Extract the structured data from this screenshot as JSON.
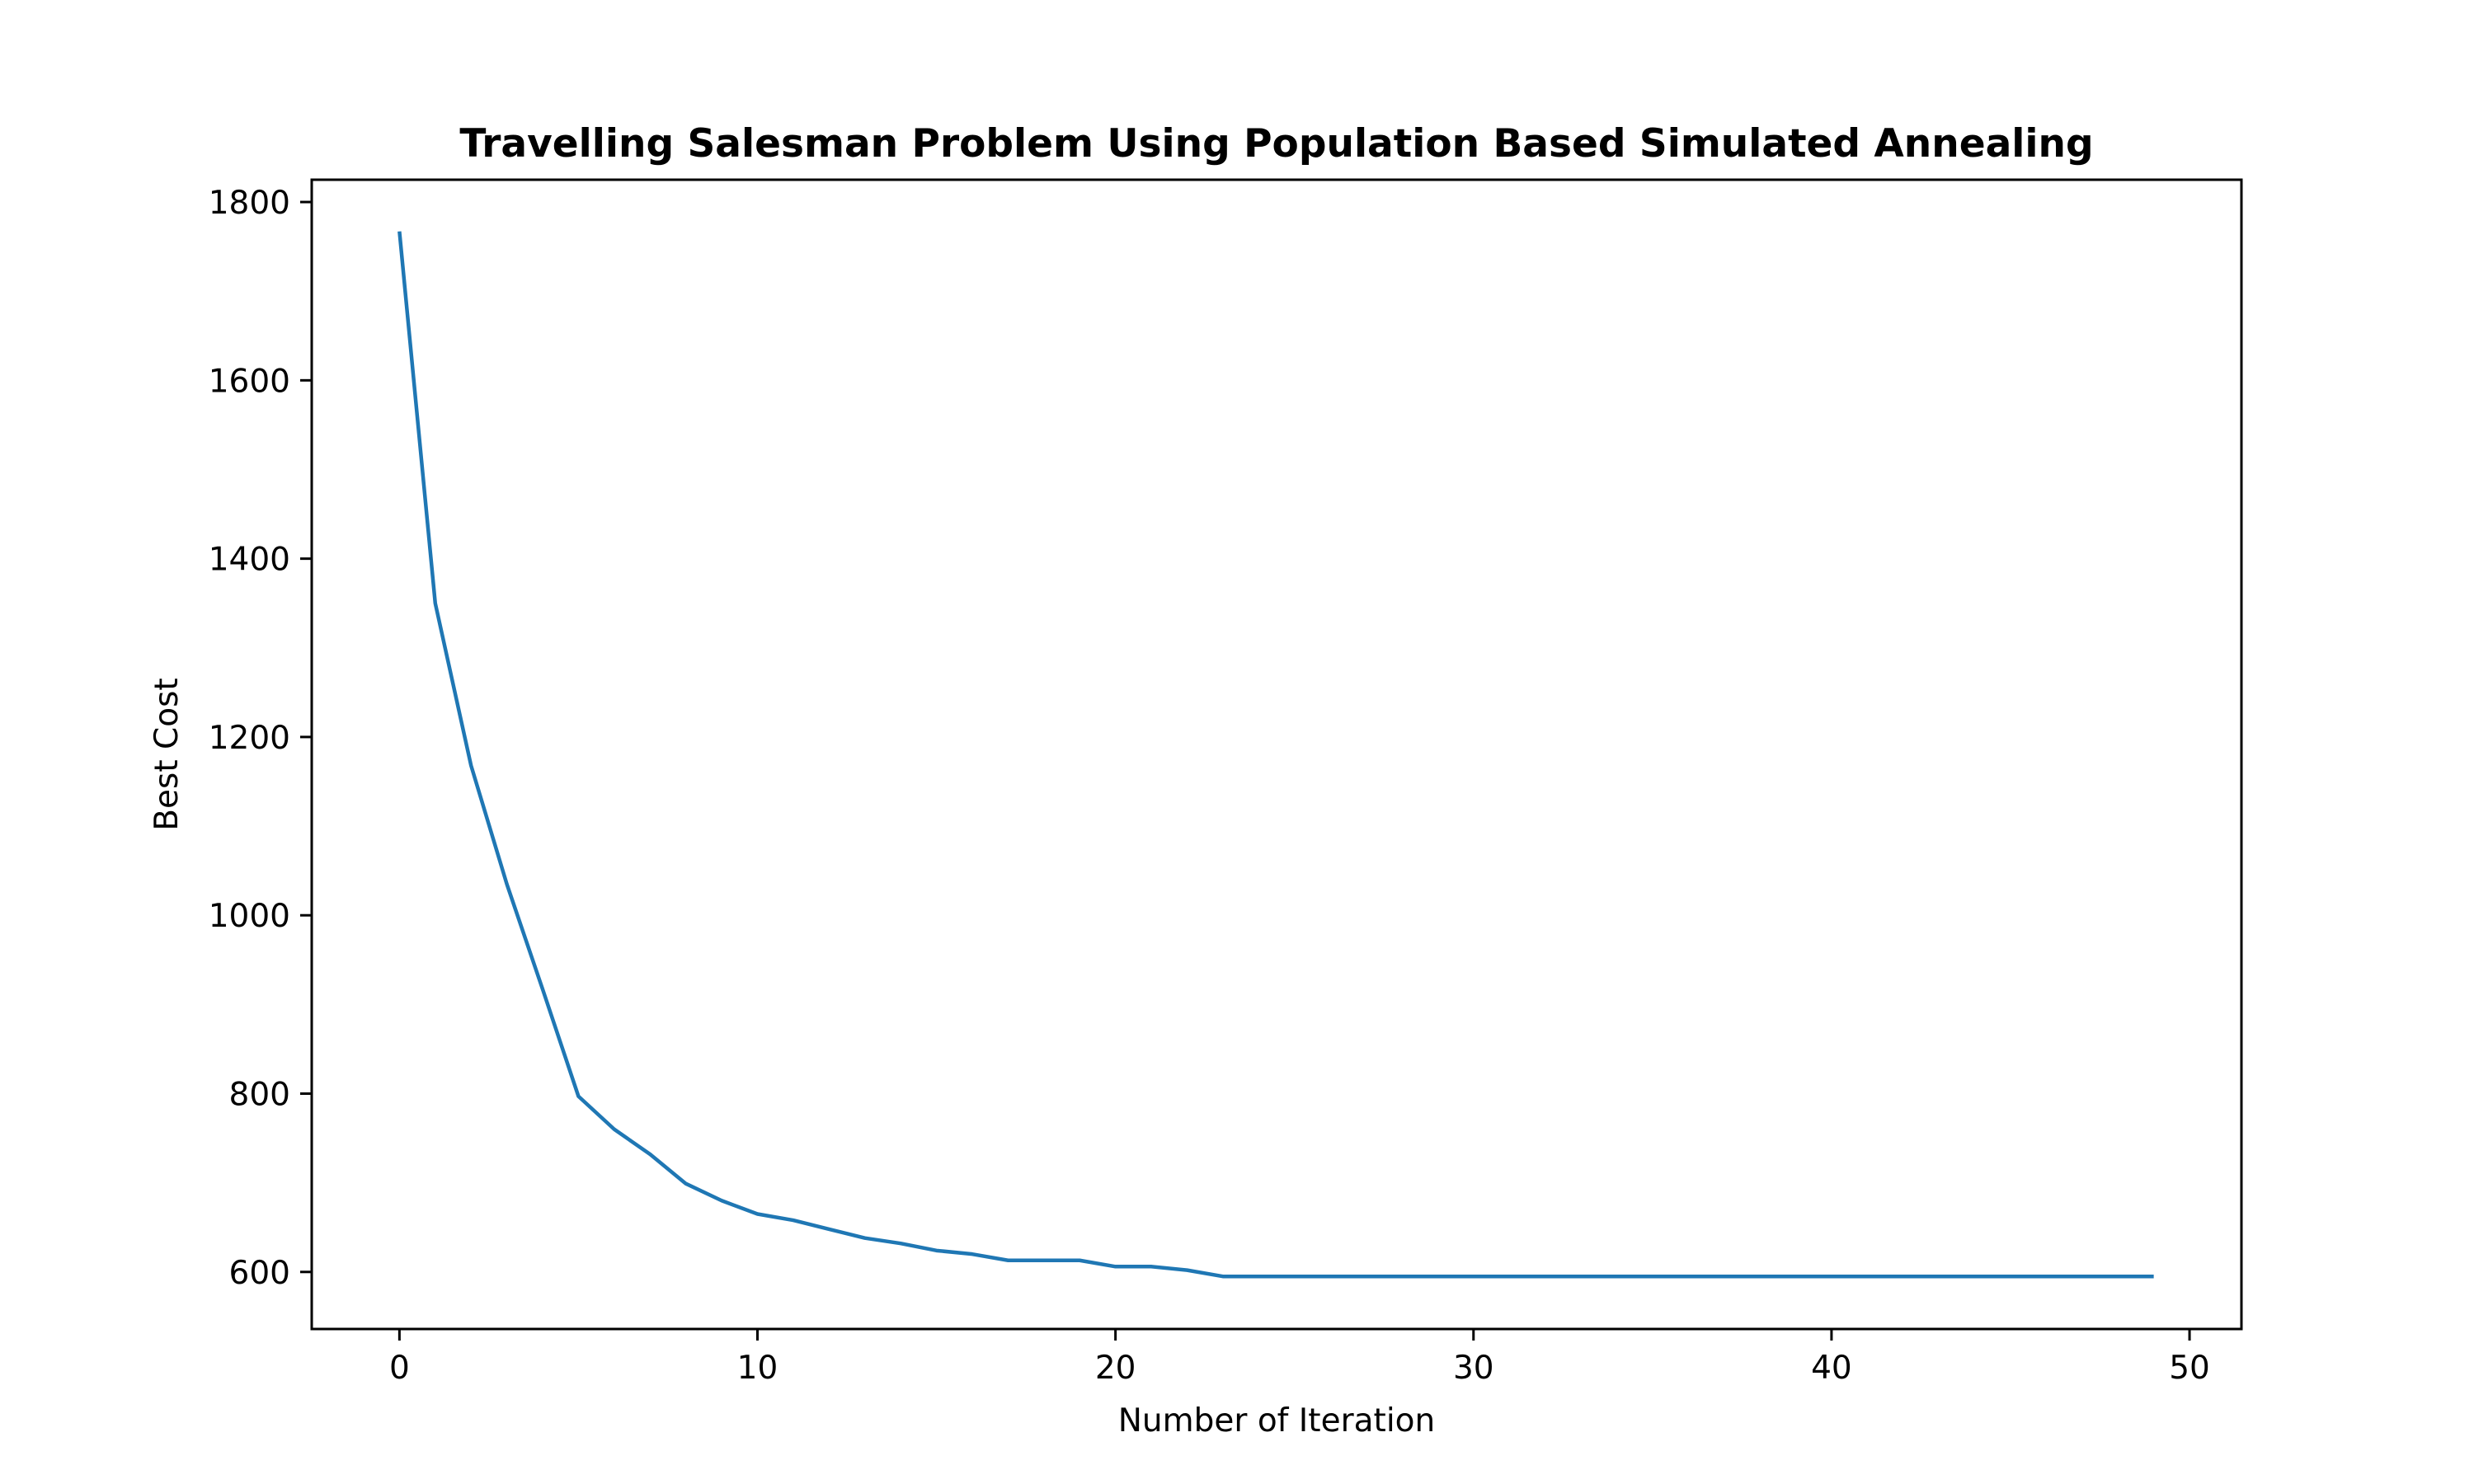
{
  "chart_data": {
    "type": "line",
    "title": "Travelling Salesman Problem Using Population Based Simulated Annealing",
    "xlabel": "Number of Iteration",
    "ylabel": "Best Cost",
    "xlim": [
      -2.45,
      51.45
    ],
    "ylim": [
      536,
      1825
    ],
    "xticks": [
      0,
      10,
      20,
      30,
      40,
      50
    ],
    "yticks": [
      600,
      800,
      1000,
      1200,
      1400,
      1600,
      1800
    ],
    "grid": false,
    "legend": "none",
    "series": [
      {
        "color": "#1f77b4",
        "x": [
          0,
          1,
          2,
          3,
          4,
          5,
          6,
          7,
          8,
          9,
          10,
          11,
          12,
          13,
          14,
          15,
          16,
          17,
          18,
          19,
          20,
          21,
          22,
          23,
          24,
          25,
          26,
          27,
          28,
          29,
          30,
          31,
          32,
          33,
          34,
          35,
          36,
          37,
          38,
          39,
          40,
          41,
          42,
          43,
          44,
          45,
          46,
          47,
          48,
          49
        ],
        "values": [
          1767,
          1350,
          1168,
          1035,
          917,
          797,
          760,
          732,
          699,
          680,
          665,
          658,
          648,
          638,
          632,
          624,
          620,
          613,
          613,
          613,
          606,
          606,
          602,
          595,
          595,
          595,
          595,
          595,
          595,
          595,
          595,
          595,
          595,
          595,
          595,
          595,
          595,
          595,
          595,
          595,
          595,
          595,
          595,
          595,
          595,
          595,
          595,
          595,
          595,
          595
        ]
      }
    ]
  }
}
